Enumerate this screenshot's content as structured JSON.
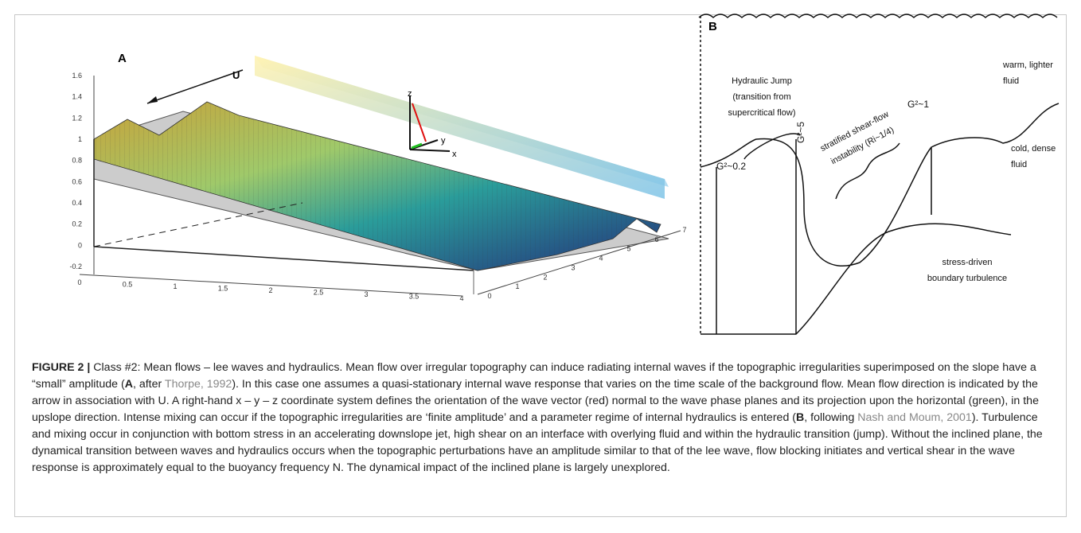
{
  "figure": {
    "panel_a": {
      "label": "A",
      "annotations": {
        "flow": "U",
        "z": "z",
        "y": "y",
        "x": "x"
      },
      "z_ticks": [
        "1.6",
        "1.4",
        "1.2",
        "1",
        "0.8",
        "0.6",
        "0.4",
        "0.2",
        "0",
        "-0.2"
      ],
      "x_ticks": [
        "0",
        "0.5",
        "1",
        "1.5",
        "2",
        "2.5",
        "3",
        "3.5",
        "4"
      ],
      "y_ticks": [
        "0",
        "1",
        "2",
        "3",
        "4",
        "5",
        "6",
        "7"
      ]
    },
    "panel_b": {
      "label": "B",
      "hydraulic_jump": [
        "Hydraulic Jump",
        "(transition from",
        "supercritical flow)"
      ],
      "warm": [
        "warm, lighter",
        "fluid"
      ],
      "cold": [
        "cold, dense",
        "fluid"
      ],
      "shear": [
        "stratified shear-flow",
        "instability (Ri~1/4)"
      ],
      "stress": [
        "stress-driven",
        "boundary turbulence"
      ],
      "g_left": "G²~0.2",
      "g_mid": "G²~5",
      "g_right": "G²~1"
    },
    "caption": {
      "label": "FIGURE 2 |",
      "t1": " Class #2: Mean flows – lee waves and hydraulics. Mean flow over irregular topography can induce radiating internal waves if the topographic irregularities superimposed on the slope have a “small” amplitude (",
      "b1": "A",
      "t2": ", after ",
      "r1": "Thorpe, 1992",
      "t3": "). In this case one assumes a quasi-stationary internal wave response that varies on the time scale of the background flow. Mean flow direction is indicated by the arrow in association with U. A right-hand x – y – z coordinate system defines the orientation of the wave vector (red) normal to the wave phase planes and its projection upon the horizontal (green), in the upslope direction. Intense mixing can occur if the topographic irregularities are ‘finite amplitude’ and a parameter regime of internal hydraulics is entered (",
      "b2": "B",
      "t4": ", following ",
      "r2": "Nash and Moum, 2001",
      "t5": "). Turbulence and mixing occur in conjunction with bottom stress in an accelerating downslope jet, high shear on an interface with overlying fluid and within the hydraulic transition (jump). Without the inclined plane, the dynamical transition between waves and hydraulics occurs when the topographic perturbations have an amplitude similar to that of the lee wave, flow blocking initiates and vertical shear in the wave response is approximately equal to the buoyancy frequency N. The dynamical impact of the inclined plane is largely unexplored."
    }
  }
}
